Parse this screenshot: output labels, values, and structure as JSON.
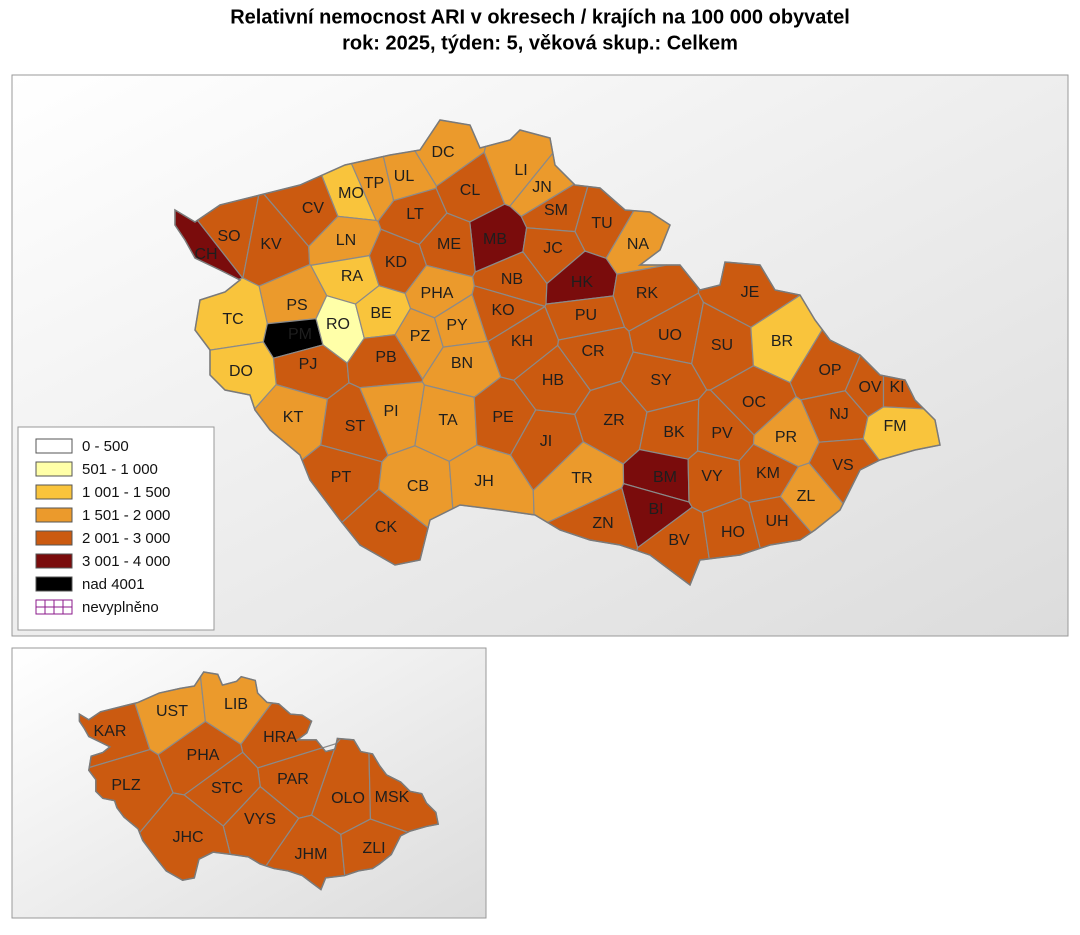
{
  "title": "Relativní nemocnost ARI v okresech / krajích na 100 000 obyvatel",
  "subtitle": "rok: 2025, týden: 5, věková skup.: Celkem",
  "legend": [
    {
      "label": "0 - 500",
      "color": "#ffffff"
    },
    {
      "label": "501 - 1 000",
      "color": "#ffffa8"
    },
    {
      "label": "1 001 - 1 500",
      "color": "#f9c43c"
    },
    {
      "label": "1 501 - 2 000",
      "color": "#eb9a2c"
    },
    {
      "label": "2 001 - 3 000",
      "color": "#cb5a10"
    },
    {
      "label": "3 001 - 4 000",
      "color": "#7a0c0c"
    },
    {
      "label": "nad 4001",
      "color": "#000000"
    },
    {
      "label": "nevyplněno",
      "color": "#8b1a8b"
    }
  ],
  "districts": [
    {
      "label": "DC",
      "color": "#eb9a2c"
    },
    {
      "label": "LI",
      "color": "#eb9a2c"
    },
    {
      "label": "JN",
      "color": "#eb9a2c"
    },
    {
      "label": "MO",
      "color": "#f9c43c"
    },
    {
      "label": "TP",
      "color": "#eb9a2c"
    },
    {
      "label": "UL",
      "color": "#eb9a2c"
    },
    {
      "label": "CL",
      "color": "#cb5a10"
    },
    {
      "label": "CV",
      "color": "#cb5a10"
    },
    {
      "label": "LT",
      "color": "#cb5a10"
    },
    {
      "label": "SM",
      "color": "#cb5a10"
    },
    {
      "label": "TU",
      "color": "#cb5a10"
    },
    {
      "label": "MB",
      "color": "#7a0c0c"
    },
    {
      "label": "SO",
      "color": "#cb5a10"
    },
    {
      "label": "CH",
      "color": "#7a0c0c"
    },
    {
      "label": "KV",
      "color": "#cb5a10"
    },
    {
      "label": "LN",
      "color": "#eb9a2c"
    },
    {
      "label": "ME",
      "color": "#cb5a10"
    },
    {
      "label": "JC",
      "color": "#cb5a10"
    },
    {
      "label": "NA",
      "color": "#eb9a2c"
    },
    {
      "label": "RA",
      "color": "#f9c43c"
    },
    {
      "label": "KD",
      "color": "#cb5a10"
    },
    {
      "label": "NB",
      "color": "#cb5a10"
    },
    {
      "label": "HK",
      "color": "#7a0c0c"
    },
    {
      "label": "RK",
      "color": "#cb5a10"
    },
    {
      "label": "JE",
      "color": "#cb5a10"
    },
    {
      "label": "PS",
      "color": "#eb9a2c"
    },
    {
      "label": "TC",
      "color": "#f9c43c"
    },
    {
      "label": "PM",
      "color": "#000000"
    },
    {
      "label": "RO",
      "color": "#ffffa8"
    },
    {
      "label": "BE",
      "color": "#f9c43c"
    },
    {
      "label": "PHA",
      "color": "#eb9a2c"
    },
    {
      "label": "PY",
      "color": "#eb9a2c"
    },
    {
      "label": "PZ",
      "color": "#eb9a2c"
    },
    {
      "label": "KO",
      "color": "#cb5a10"
    },
    {
      "label": "PU",
      "color": "#cb5a10"
    },
    {
      "label": "UO",
      "color": "#cb5a10"
    },
    {
      "label": "SU",
      "color": "#cb5a10"
    },
    {
      "label": "BR",
      "color": "#f9c43c"
    },
    {
      "label": "KH",
      "color": "#cb5a10"
    },
    {
      "label": "CR",
      "color": "#cb5a10"
    },
    {
      "label": "PJ",
      "color": "#cb5a10"
    },
    {
      "label": "PB",
      "color": "#cb5a10"
    },
    {
      "label": "BN",
      "color": "#eb9a2c"
    },
    {
      "label": "DO",
      "color": "#f9c43c"
    },
    {
      "label": "OP",
      "color": "#cb5a10"
    },
    {
      "label": "OV",
      "color": "#cb5a10"
    },
    {
      "label": "KI",
      "color": "#cb5a10"
    },
    {
      "label": "HB",
      "color": "#cb5a10"
    },
    {
      "label": "SY",
      "color": "#cb5a10"
    },
    {
      "label": "OC",
      "color": "#cb5a10"
    },
    {
      "label": "KT",
      "color": "#eb9a2c"
    },
    {
      "label": "PI",
      "color": "#eb9a2c"
    },
    {
      "label": "ST",
      "color": "#cb5a10"
    },
    {
      "label": "TA",
      "color": "#eb9a2c"
    },
    {
      "label": "PE",
      "color": "#cb5a10"
    },
    {
      "label": "ZR",
      "color": "#cb5a10"
    },
    {
      "label": "BK",
      "color": "#cb5a10"
    },
    {
      "label": "PV",
      "color": "#cb5a10"
    },
    {
      "label": "NJ",
      "color": "#cb5a10"
    },
    {
      "label": "PR",
      "color": "#eb9a2c"
    },
    {
      "label": "FM",
      "color": "#f9c43c"
    },
    {
      "label": "JI",
      "color": "#cb5a10"
    },
    {
      "label": "VS",
      "color": "#cb5a10"
    },
    {
      "label": "PT",
      "color": "#cb5a10"
    },
    {
      "label": "CB",
      "color": "#eb9a2c"
    },
    {
      "label": "JH",
      "color": "#eb9a2c"
    },
    {
      "label": "TR",
      "color": "#eb9a2c"
    },
    {
      "label": "BM",
      "color": "#7a0c0c"
    },
    {
      "label": "VY",
      "color": "#cb5a10"
    },
    {
      "label": "KM",
      "color": "#cb5a10"
    },
    {
      "label": "ZL",
      "color": "#eb9a2c"
    },
    {
      "label": "BI",
      "color": "#7a0c0c"
    },
    {
      "label": "UH",
      "color": "#cb5a10"
    },
    {
      "label": "CK",
      "color": "#cb5a10"
    },
    {
      "label": "ZN",
      "color": "#cb5a10"
    },
    {
      "label": "BV",
      "color": "#cb5a10"
    },
    {
      "label": "HO",
      "color": "#cb5a10"
    }
  ],
  "regions": [
    {
      "label": "KAR",
      "color": "#cb5a10"
    },
    {
      "label": "UST",
      "color": "#eb9a2c"
    },
    {
      "label": "LIB",
      "color": "#eb9a2c"
    },
    {
      "label": "HRA",
      "color": "#cb5a10"
    },
    {
      "label": "PHA",
      "color": "#cb5a10"
    },
    {
      "label": "PAR",
      "color": "#cb5a10"
    },
    {
      "label": "STC",
      "color": "#cb5a10"
    },
    {
      "label": "PLZ",
      "color": "#cb5a10"
    },
    {
      "label": "OLO",
      "color": "#cb5a10"
    },
    {
      "label": "MSK",
      "color": "#cb5a10"
    },
    {
      "label": "VYS",
      "color": "#cb5a10"
    },
    {
      "label": "JHC",
      "color": "#cb5a10"
    },
    {
      "label": "JHM",
      "color": "#cb5a10"
    },
    {
      "label": "ZLI",
      "color": "#cb5a10"
    }
  ]
}
